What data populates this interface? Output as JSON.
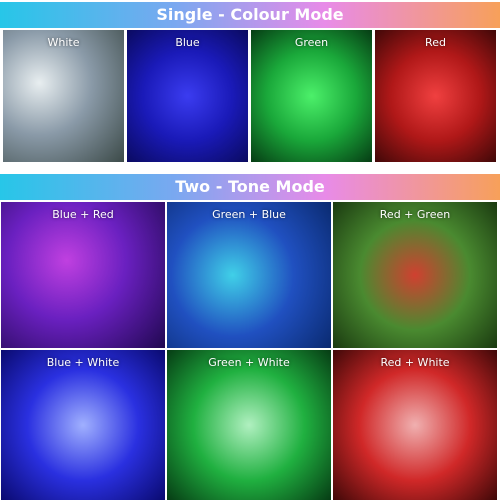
{
  "sections": [
    {
      "title": "Single - Colour Mode",
      "panels": [
        {
          "label": "White"
        },
        {
          "label": "Blue"
        },
        {
          "label": "Green"
        },
        {
          "label": "Red"
        }
      ]
    },
    {
      "title": "Two - Tone Mode",
      "panels": [
        {
          "label": "Blue + Red"
        },
        {
          "label": "Green + Blue"
        },
        {
          "label": "Red + Green"
        },
        {
          "label": "Blue + White"
        },
        {
          "label": "Green + White"
        },
        {
          "label": "Red + White"
        }
      ]
    }
  ]
}
